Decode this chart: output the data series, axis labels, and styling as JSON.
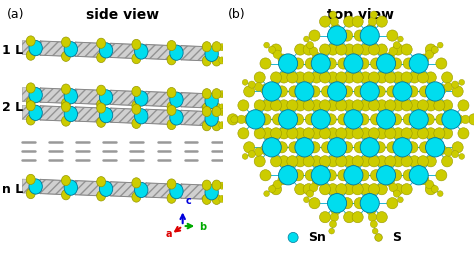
{
  "title_a": "side view",
  "title_b": "top view",
  "label_a": "(a)",
  "label_b": "(b)",
  "label_1L": "1 L",
  "label_2L": "2 L",
  "label_nL": "n L",
  "legend_sn": "Sn",
  "legend_s": "S",
  "sn_color": "#00DDEE",
  "s_color": "#CCCC00",
  "bond_color": "#00AACC",
  "bg_color": "#FFFFFF",
  "axis_colors": {
    "a": "#DD0000",
    "b": "#00AA00",
    "c": "#0000DD"
  },
  "font_size_title": 10,
  "font_size_label": 9,
  "font_size_legend": 9,
  "layer_color": "#BBBBBB",
  "hatch_color": "#888888",
  "dashed_color": "#999999"
}
